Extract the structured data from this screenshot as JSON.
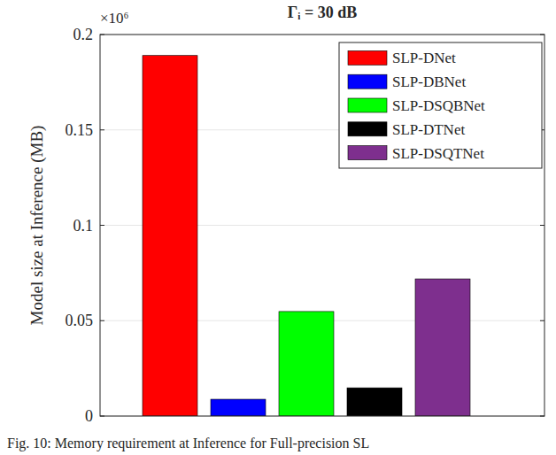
{
  "chart_data": {
    "type": "bar",
    "title": "Γᵢ = 30 dB",
    "y_label": "Model size at Inference (MB)",
    "y_multiplier": "×10⁶",
    "caption": "Fig. 10: Memory requirement at Inference for Full-precision SL",
    "categories": [
      null
    ],
    "series": [
      {
        "name": "SLP-DNet",
        "color": "#ff0000",
        "values": [
          0.189
        ]
      },
      {
        "name": "SLP-DBNet",
        "color": "#0000ff",
        "values": [
          0.0088
        ]
      },
      {
        "name": "SLP-DSQBNet",
        "color": "#00ff00",
        "values": [
          0.0548
        ]
      },
      {
        "name": "SLP-DTNet",
        "color": "#000000",
        "values": [
          0.0148
        ]
      },
      {
        "name": "SLP-DSQTNet",
        "color": "#7e2f8e",
        "values": [
          0.0719
        ]
      }
    ],
    "ylim": [
      0,
      0.2
    ],
    "yticks": [
      0,
      0.05,
      0.1,
      0.15,
      0.2
    ],
    "grid": true,
    "legend": "upper right",
    "tick_labels": "y"
  }
}
